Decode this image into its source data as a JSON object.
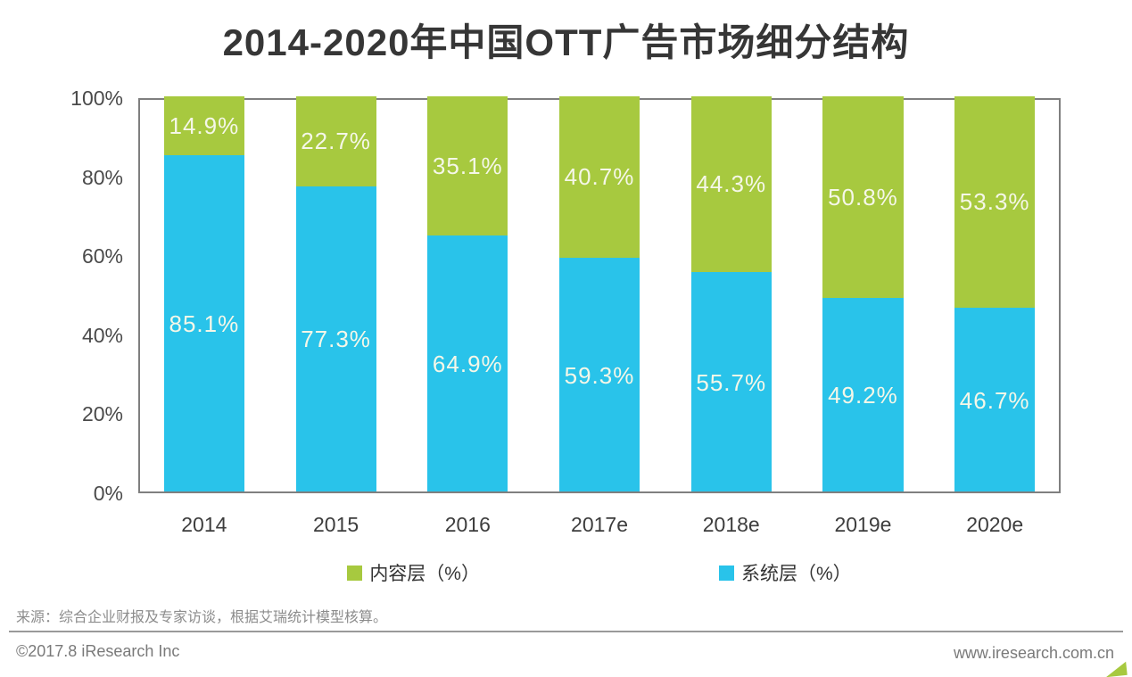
{
  "page": {
    "title": "2014-2020年中国OTT广告市场细分结构",
    "source_note": "来源：综合企业财报及专家访谈，根据艾瑞统计模型核算。",
    "footer": {
      "copyright": "©2017.8 iResearch Inc",
      "website": "www.iresearch.com.cn"
    }
  },
  "chart_data": {
    "type": "bar",
    "stacked": true,
    "title": "2014-2020年中国OTT广告市场细分结构",
    "categories": [
      "2014",
      "2015",
      "2016",
      "2017e",
      "2018e",
      "2019e",
      "2020e"
    ],
    "series": [
      {
        "id": "content-layer",
        "name": "内容层（%）",
        "color": "#a7c93f",
        "stack_order": "top",
        "values": [
          14.9,
          22.7,
          35.1,
          40.7,
          44.3,
          50.8,
          53.3
        ]
      },
      {
        "id": "system-layer",
        "name": "系统层（%）",
        "color": "#29c3ea",
        "stack_order": "bottom",
        "values": [
          85.1,
          77.3,
          64.9,
          59.3,
          55.7,
          49.2,
          46.7
        ]
      }
    ],
    "value_suffix": "%",
    "y_axis": {
      "ticks": [
        "100%",
        "80%",
        "60%",
        "40%",
        "20%",
        "0%"
      ],
      "min": 0,
      "max": 100
    },
    "grid": false,
    "legend_position": "bottom",
    "bar_label_color": "#f5f7e8",
    "axis_line_color": "#7f7f7f"
  }
}
